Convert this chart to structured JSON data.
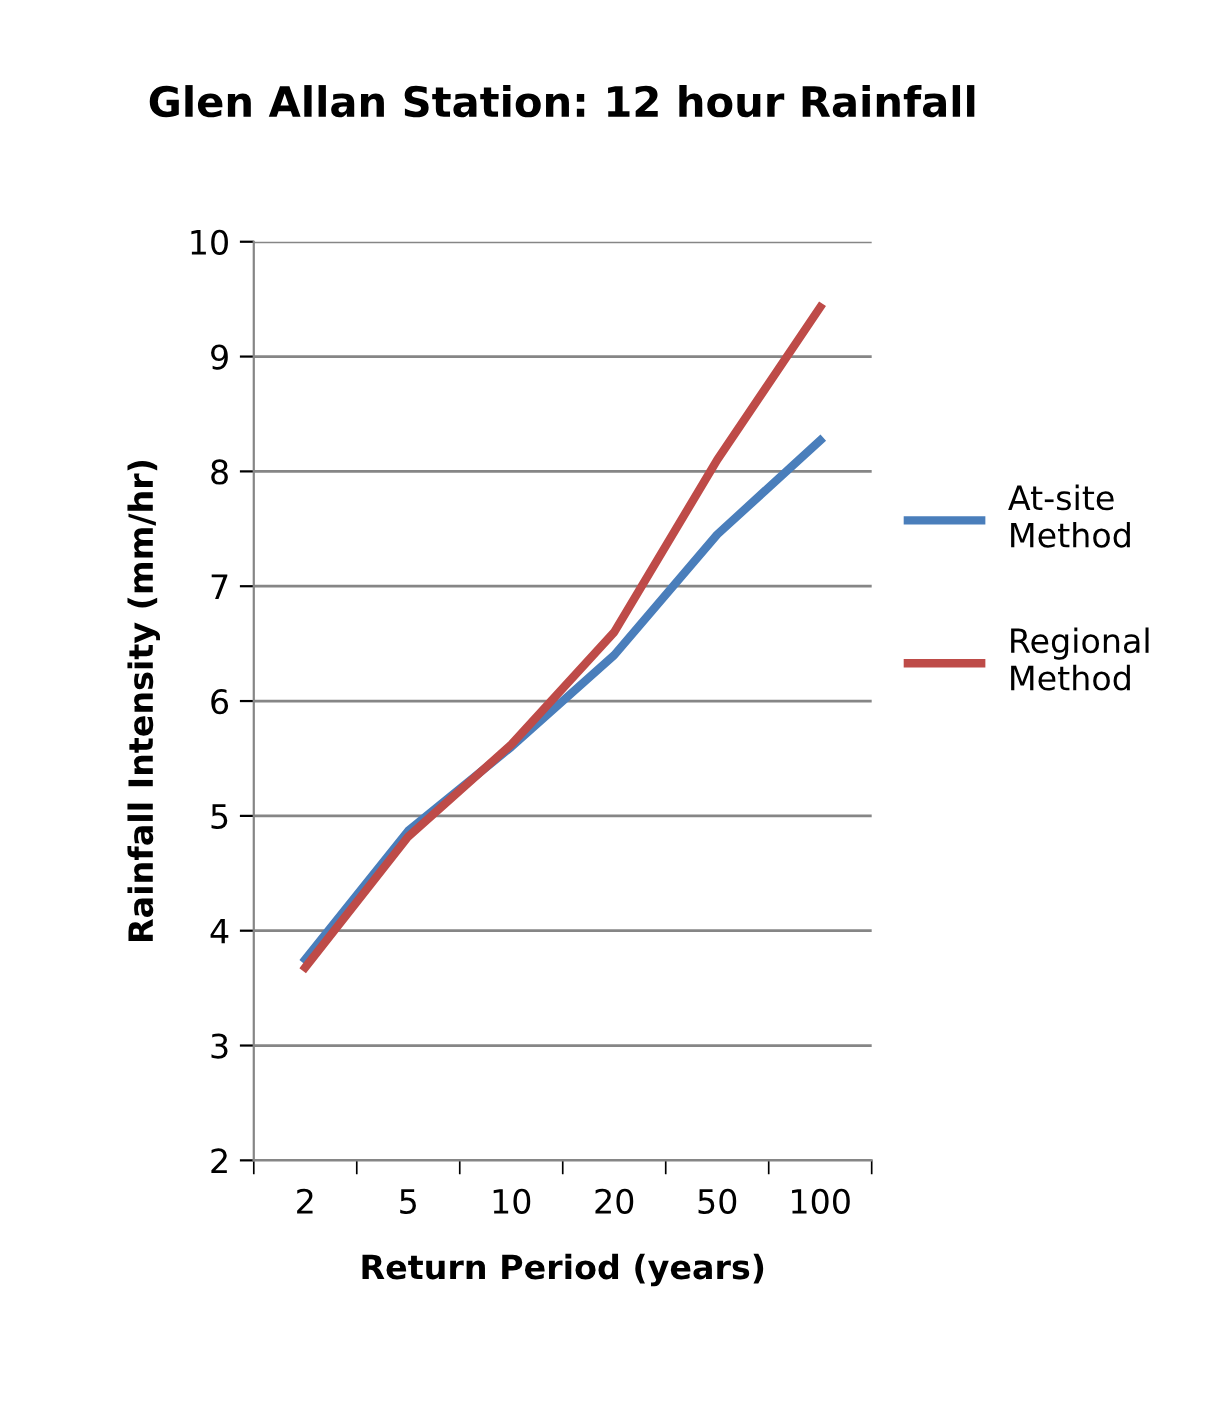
{
  "chart_data": {
    "type": "line",
    "title": "Glen Allan Station: 12 hour Rainfall",
    "xlabel": "Return Period (years)",
    "ylabel": "Rainfall Intensity (mm/hr)",
    "categories": [
      "2",
      "5",
      "10",
      "20",
      "50",
      "100"
    ],
    "series": [
      {
        "name": "At-site Method",
        "color": "#4a7ebb",
        "values": [
          3.75,
          4.87,
          5.6,
          6.4,
          7.45,
          8.27
        ]
      },
      {
        "name": "Regional Method",
        "color": "#be4b48",
        "values": [
          3.68,
          4.82,
          5.62,
          6.6,
          8.1,
          9.43
        ]
      }
    ],
    "ylim": [
      2,
      10
    ],
    "yticks": [
      2,
      3,
      4,
      5,
      6,
      7,
      8,
      9,
      10
    ],
    "grid": "y",
    "legend": "right",
    "marker": "none",
    "line_style": "solid"
  }
}
